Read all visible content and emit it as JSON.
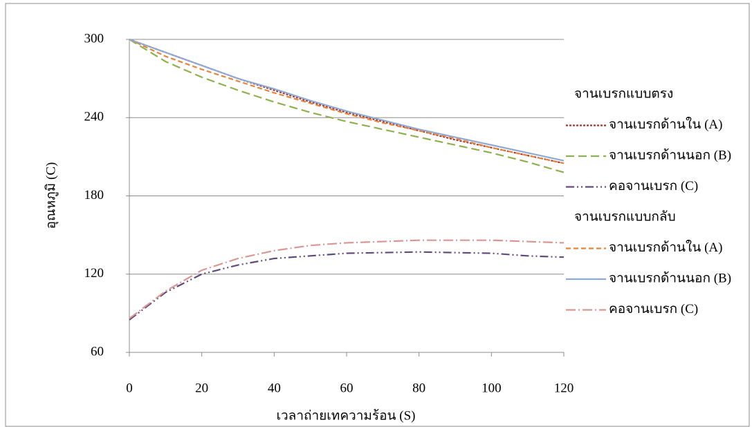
{
  "chart_data": {
    "type": "line",
    "x_label": "เวลาถ่ายเทความร้อน (S)",
    "y_label": "อุณหภูมิ (C)",
    "x": [
      0,
      10,
      20,
      30,
      40,
      50,
      60,
      70,
      80,
      90,
      100,
      110,
      120
    ],
    "xlim": [
      0,
      120
    ],
    "xticks": [
      0,
      20,
      40,
      60,
      80,
      100,
      120
    ],
    "ylim": [
      60,
      300
    ],
    "yticks": [
      60,
      120,
      180,
      240,
      300
    ],
    "grid": true,
    "legend": "right",
    "groups": [
      {
        "name": "จานเบรกแบบตรง",
        "series": [
          {
            "name": "จานเบรกด้านใน (A)",
            "color": "#a5322f",
            "dash": "3 2",
            "values": [
              300,
              290,
              280,
              270,
              261,
              252,
              244,
              237,
              230,
              223,
              217,
              211,
              205
            ]
          },
          {
            "name": "จานเบรกด้านนอก (B)",
            "color": "#8fb04e",
            "dash": "12 6",
            "values": [
              300,
              283,
              271,
              261,
              252,
              244,
              237,
              231,
              225,
              219,
              213,
              206,
              198
            ]
          },
          {
            "name": "คอจานเบรก (C)",
            "color": "#604a7b",
            "dash": "12 4 2 4 2 4",
            "values": [
              85,
              106,
              120,
              127,
              132,
              134,
              136,
              136.5,
              137,
              136.5,
              136,
              134,
              133
            ]
          }
        ]
      },
      {
        "name": "จานเบรกแบบกลับ",
        "series": [
          {
            "name": "จานเบรกด้านใน (A)",
            "color": "#e8843a",
            "dash": "7 4",
            "values": [
              300,
              287,
              277,
              268,
              259,
              251,
              243,
              236,
              230,
              224,
              217,
              211,
              205
            ]
          },
          {
            "name": "จานเบรกด้านนอก (B)",
            "color": "#8ea9d4",
            "dash": "",
            "values": [
              300,
              290,
              280,
              270,
              262,
              253,
              245,
              238,
              231,
              225,
              219,
              213,
              207
            ]
          },
          {
            "name": "คอจานเบรก (C)",
            "color": "#d99694",
            "dash": "14 4 2 4",
            "values": [
              86,
              107,
              123,
              132,
              138,
              142,
              144,
              145,
              146,
              146,
              146,
              145,
              144
            ]
          }
        ]
      }
    ]
  }
}
